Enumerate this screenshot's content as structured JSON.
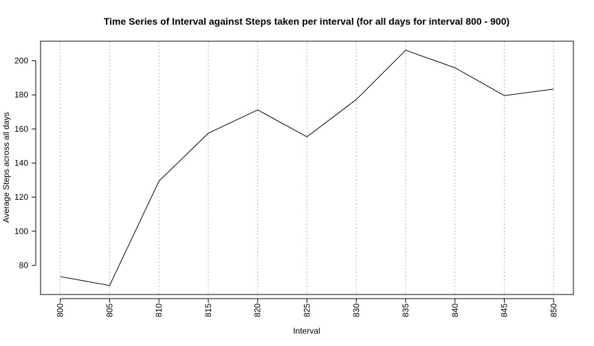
{
  "chart_data": {
    "type": "line",
    "title": "Time Series of Interval against Steps taken per interval (for all days for interval 800 - 900)",
    "xlabel": "Interval",
    "ylabel": "Average Steps across all days",
    "x": [
      800,
      805,
      810,
      815,
      820,
      825,
      830,
      835,
      840,
      845,
      850
    ],
    "x_tick_labels": [
      "800",
      "805",
      "810",
      "815",
      "820",
      "825",
      "830",
      "835",
      "840",
      "845",
      "850"
    ],
    "y_tick_values": [
      80,
      100,
      120,
      140,
      160,
      180,
      200
    ],
    "y_tick_labels": [
      "80",
      "100",
      "120",
      "140",
      "160",
      "180",
      "200"
    ],
    "series": [
      {
        "values": [
          73.4,
          68.2,
          129.4,
          157.5,
          171.2,
          155.4,
          177.3,
          206.2,
          195.9,
          179.6,
          183.4
        ],
        "color": "#000000"
      }
    ],
    "xlim": [
      798,
      852
    ],
    "ylim": [
      62.9,
      211.5
    ],
    "grid": {
      "vertical": true,
      "horizontal": false,
      "color": "#b3b3b3",
      "style": "dotted"
    },
    "legend": "none"
  }
}
